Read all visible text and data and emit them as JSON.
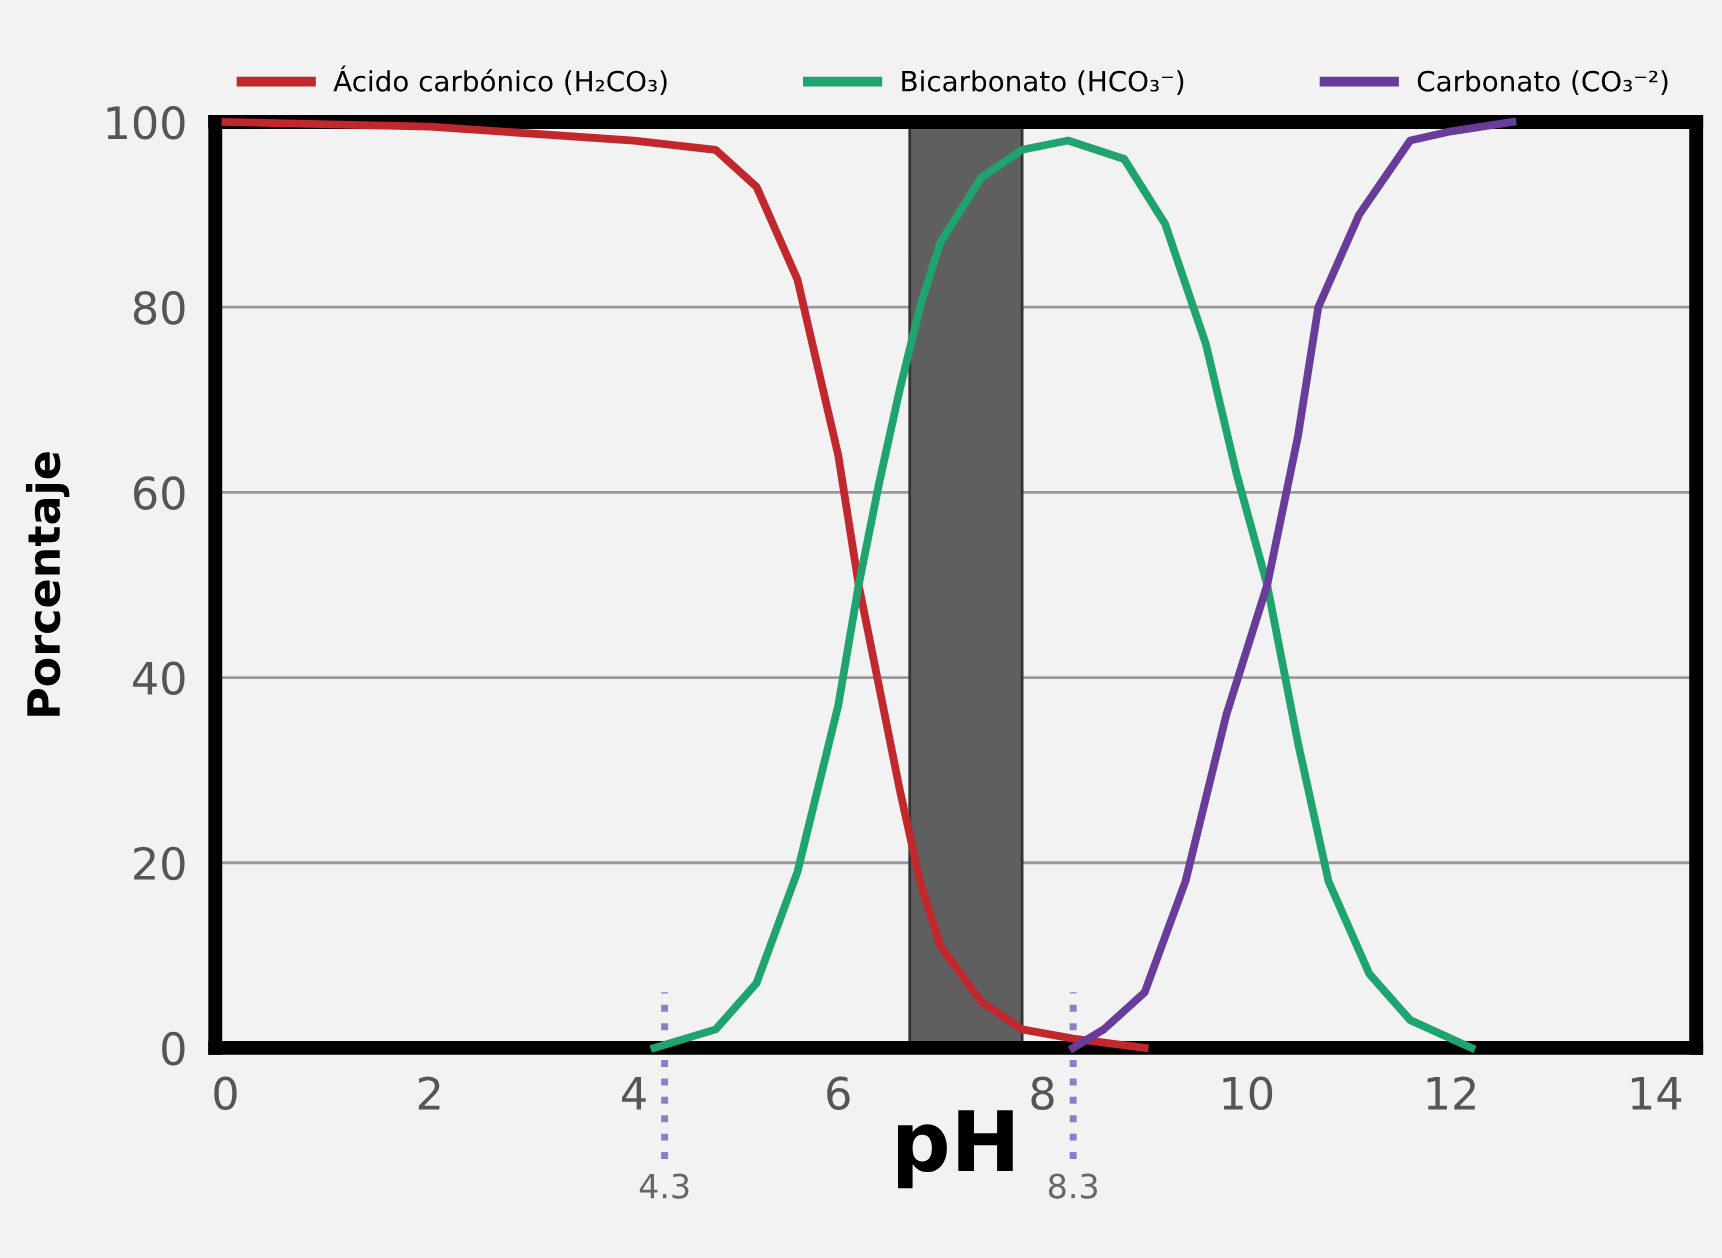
{
  "chart_data": {
    "type": "line",
    "xlabel": "pH",
    "ylabel": "Porcentaje",
    "xlim": [
      -0.1,
      14.4
    ],
    "xticks": [
      0,
      2,
      4,
      6,
      8,
      10,
      12,
      14
    ],
    "ylim": [
      0,
      100
    ],
    "yticks": [
      0,
      20,
      40,
      60,
      80,
      100
    ],
    "grid": "y",
    "legend": "top",
    "series": [
      {
        "name": "Ácido carbónico (H₂CO₃)",
        "color": "#c0282d",
        "x": [
          0,
          2,
          4,
          4.8,
          5.2,
          5.6,
          6.0,
          6.2,
          6.4,
          6.6,
          6.8,
          7.0,
          7.4,
          7.8,
          8.3,
          9.0
        ],
        "values": [
          100,
          99.5,
          98,
          97,
          93,
          83,
          64,
          50,
          39,
          28,
          18,
          11,
          5,
          2,
          1,
          0
        ]
      },
      {
        "name": "Bicarbonato (HCO₃⁻)",
        "color": "#1fa36f",
        "x": [
          4.2,
          4.8,
          5.2,
          5.6,
          6.0,
          6.2,
          6.4,
          6.6,
          6.8,
          7.0,
          7.4,
          7.8,
          8.25,
          8.8,
          9.2,
          9.6,
          9.9,
          10.2,
          10.5,
          10.8,
          11.2,
          11.6,
          12.2
        ],
        "values": [
          0,
          2,
          7,
          19,
          37,
          50,
          61,
          71,
          80,
          87,
          94,
          97,
          98,
          96,
          89,
          76,
          62,
          50,
          33,
          18,
          8,
          3,
          0
        ]
      },
      {
        "name": "Carbonato (CO₃⁻²)",
        "color": "#6a3c9a",
        "x": [
          8.3,
          8.6,
          9.0,
          9.4,
          9.8,
          10.2,
          10.5,
          10.7,
          11.1,
          11.6,
          12.0,
          12.6
        ],
        "values": [
          0,
          2,
          6,
          18,
          36,
          50,
          66,
          80,
          90,
          98,
          99,
          100
        ]
      }
    ],
    "bands": [
      {
        "axis": "x",
        "from": 6.7,
        "to": 7.8,
        "color": "#5f5f5f"
      }
    ],
    "ref_lines": [
      {
        "axis": "x",
        "value": 4.3,
        "label": "4.3",
        "color": "#8a80c8",
        "line_style": "dotted"
      },
      {
        "axis": "x",
        "value": 8.3,
        "label": "8.3",
        "color": "#8a80c8",
        "line_style": "dotted"
      }
    ]
  }
}
